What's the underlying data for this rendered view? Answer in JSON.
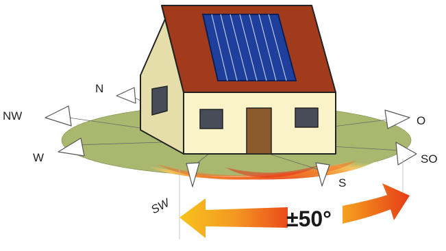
{
  "compass": {
    "N": "N",
    "NW": "NW",
    "W": "W",
    "SW": "SW",
    "S": "S",
    "SO": "SO",
    "O": "O"
  },
  "tilt_label": "±50°",
  "colors": {
    "ground_green": "#a9b86e",
    "ground_south": "#f08a2a",
    "roof": "#a23a1c",
    "wall_front": "#fbf3c8",
    "wall_side": "#e5deaa",
    "door": "#8b5a2b",
    "window": "#474c59",
    "panel": "#1f3f9c",
    "arrow_start": "#f7b81a",
    "arrow_end": "#ee5a1e"
  }
}
